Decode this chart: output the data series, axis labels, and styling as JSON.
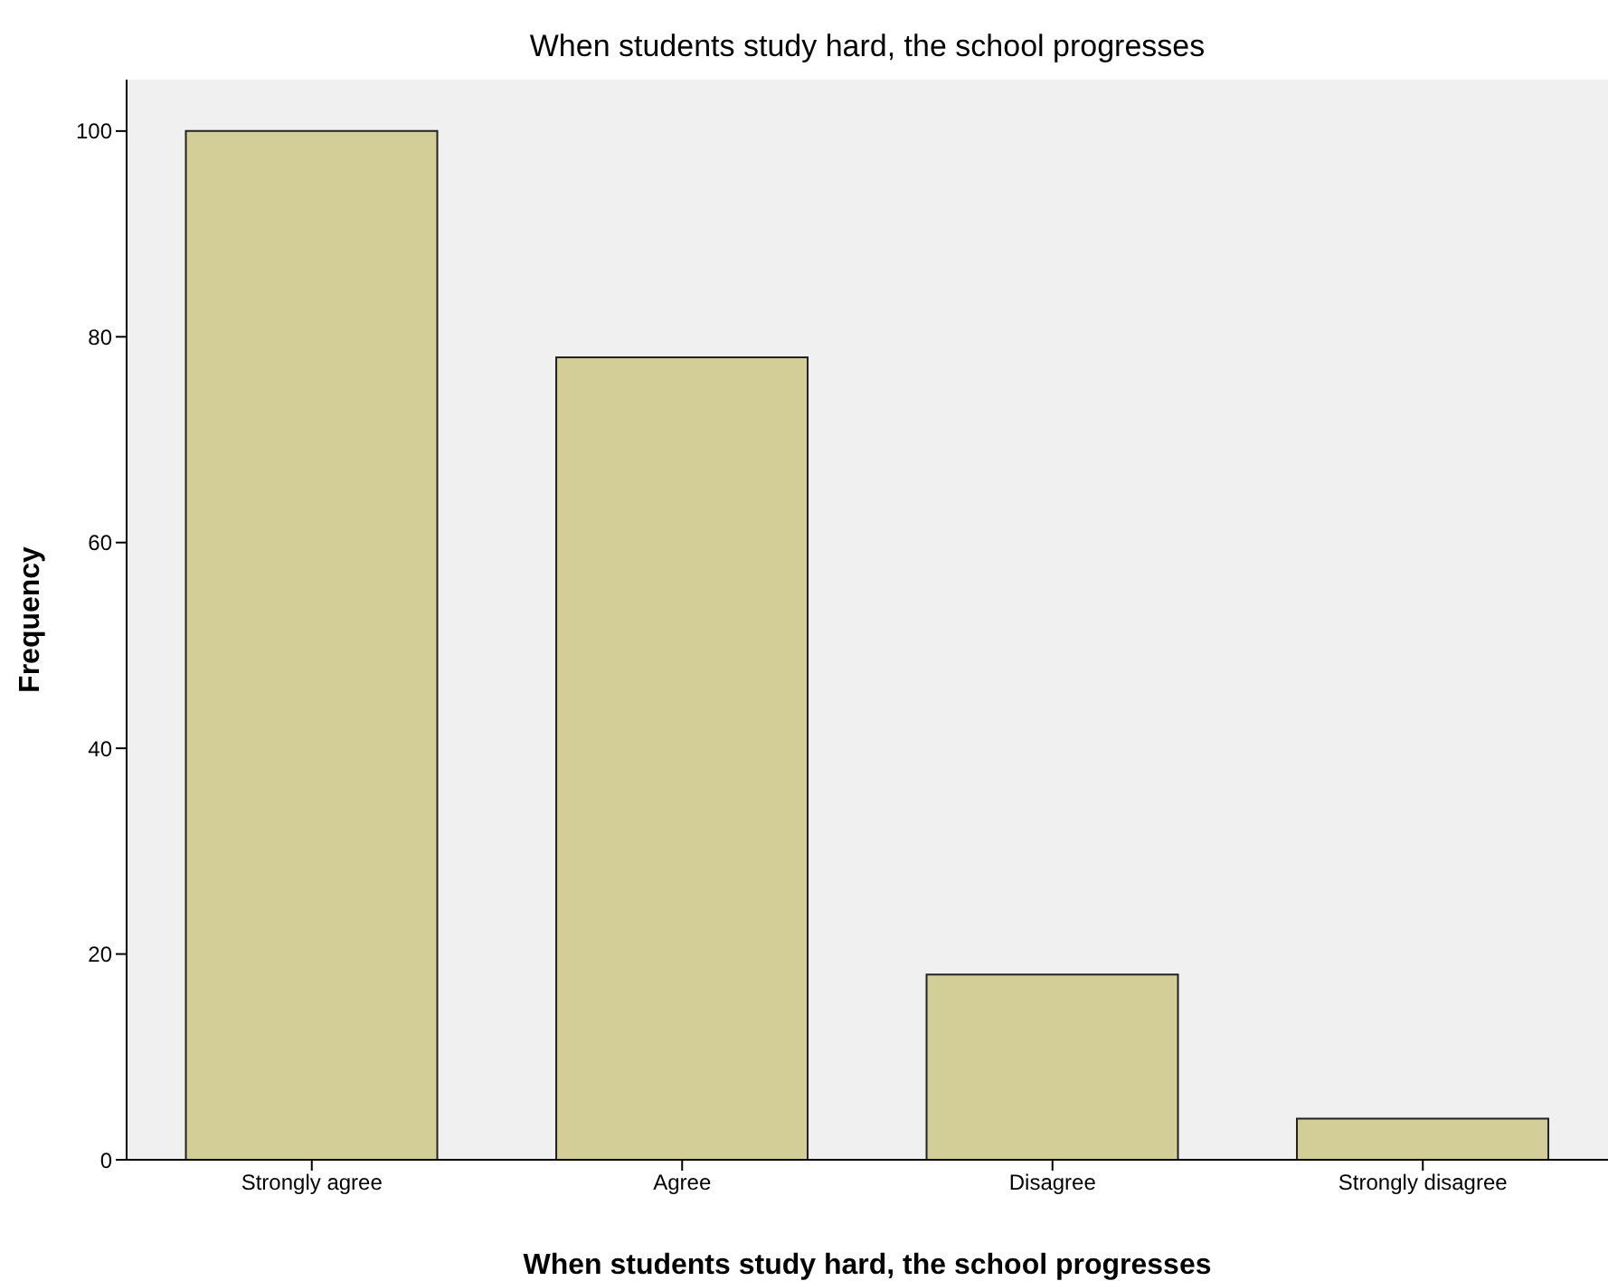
{
  "chart_data": {
    "type": "bar",
    "title": "When students study hard, the school progresses",
    "xlabel": "When students study hard, the school progresses",
    "ylabel": "Frequency",
    "categories": [
      "Strongly agree",
      "Agree",
      "Disagree",
      "Strongly disagree"
    ],
    "values": [
      100,
      78,
      18,
      4
    ],
    "color": "#d3ce97",
    "ylim": [
      0,
      105
    ],
    "yticks": [
      0,
      20,
      40,
      60,
      80,
      100
    ],
    "grid": false
  }
}
